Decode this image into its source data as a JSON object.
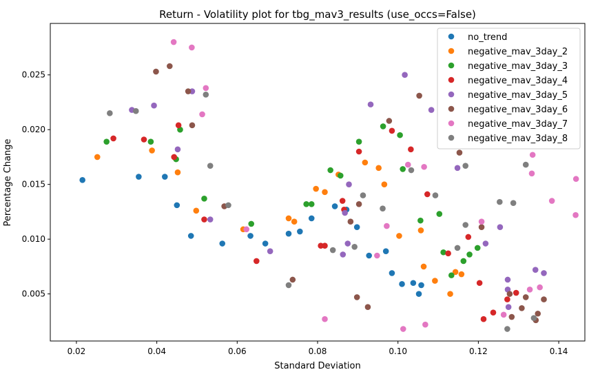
{
  "chart_data": {
    "type": "scatter",
    "title": "Return - Volatility plot for tbg_mav3_results (use_occs=False)",
    "xlabel": "Standard Deviation",
    "ylabel": "Percentage Change",
    "xlim": [
      0.0135,
      0.1465
    ],
    "ylim": [
      0.0007,
      0.0297
    ],
    "xticks": [
      "0.02",
      "0.04",
      "0.06",
      "0.08",
      "0.10",
      "0.12",
      "0.14"
    ],
    "yticks": [
      "0.005",
      "0.010",
      "0.015",
      "0.020",
      "0.025"
    ],
    "xtick_values": [
      0.02,
      0.04,
      0.06,
      0.08,
      0.1,
      0.12,
      0.14
    ],
    "ytick_values": [
      0.005,
      0.01,
      0.015,
      0.02,
      0.025
    ],
    "grid": false,
    "legend_position": "top-right",
    "series": [
      {
        "name": "no_trend",
        "color": "#1f77b4",
        "points": [
          [
            0.0215,
            0.0154
          ],
          [
            0.0355,
            0.0157
          ],
          [
            0.042,
            0.0157
          ],
          [
            0.045,
            0.0131
          ],
          [
            0.0485,
            0.0103
          ],
          [
            0.0563,
            0.0096
          ],
          [
            0.0633,
            0.0103
          ],
          [
            0.067,
            0.0096
          ],
          [
            0.0728,
            0.0105
          ],
          [
            0.0756,
            0.0107
          ],
          [
            0.0785,
            0.0119
          ],
          [
            0.0843,
            0.013
          ],
          [
            0.0872,
            0.0127
          ],
          [
            0.0898,
            0.0111
          ],
          [
            0.0928,
            0.0085
          ],
          [
            0.097,
            0.0089
          ],
          [
            0.0985,
            0.0069
          ],
          [
            0.101,
            0.0059
          ],
          [
            0.1038,
            0.006
          ],
          [
            0.1052,
            0.005
          ],
          [
            0.1058,
            0.0058
          ]
        ]
      },
      {
        "name": "negative_mav_3day_2",
        "color": "#ff7f0e",
        "points": [
          [
            0.0252,
            0.0175
          ],
          [
            0.0388,
            0.0181
          ],
          [
            0.0452,
            0.0161
          ],
          [
            0.0498,
            0.0126
          ],
          [
            0.0615,
            0.0109
          ],
          [
            0.0728,
            0.0119
          ],
          [
            0.0742,
            0.0116
          ],
          [
            0.0796,
            0.0146
          ],
          [
            0.0818,
            0.0143
          ],
          [
            0.0852,
            0.0159
          ],
          [
            0.0918,
            0.017
          ],
          [
            0.0952,
            0.0165
          ],
          [
            0.0966,
            0.015
          ],
          [
            0.1003,
            0.0103
          ],
          [
            0.1057,
            0.0108
          ],
          [
            0.1064,
            0.0075
          ],
          [
            0.1092,
            0.0062
          ],
          [
            0.113,
            0.005
          ],
          [
            0.1143,
            0.007
          ],
          [
            0.1158,
            0.0068
          ]
        ]
      },
      {
        "name": "negative_mav_3day_3",
        "color": "#2ca02c",
        "points": [
          [
            0.0275,
            0.0189
          ],
          [
            0.0385,
            0.0189
          ],
          [
            0.0448,
            0.0173
          ],
          [
            0.0458,
            0.02
          ],
          [
            0.0518,
            0.0137
          ],
          [
            0.0635,
            0.0114
          ],
          [
            0.0772,
            0.0132
          ],
          [
            0.0785,
            0.0132
          ],
          [
            0.0832,
            0.0163
          ],
          [
            0.0857,
            0.0158
          ],
          [
            0.0903,
            0.0189
          ],
          [
            0.0963,
            0.0203
          ],
          [
            0.1005,
            0.0195
          ],
          [
            0.1012,
            0.0164
          ],
          [
            0.1056,
            0.0117
          ],
          [
            0.1103,
            0.0123
          ],
          [
            0.1113,
            0.0088
          ],
          [
            0.1133,
            0.0067
          ],
          [
            0.1163,
            0.008
          ],
          [
            0.1178,
            0.0086
          ],
          [
            0.1198,
            0.0092
          ]
        ]
      },
      {
        "name": "negative_mav_3day_4",
        "color": "#d62728",
        "points": [
          [
            0.0292,
            0.0192
          ],
          [
            0.0368,
            0.0191
          ],
          [
            0.0443,
            0.0175
          ],
          [
            0.0454,
            0.0204
          ],
          [
            0.0518,
            0.0118
          ],
          [
            0.0648,
            0.008
          ],
          [
            0.0808,
            0.0094
          ],
          [
            0.0818,
            0.0094
          ],
          [
            0.0862,
            0.0135
          ],
          [
            0.0866,
            0.0127
          ],
          [
            0.0903,
            0.018
          ],
          [
            0.0985,
            0.0199
          ],
          [
            0.1032,
            0.0182
          ],
          [
            0.1073,
            0.0141
          ],
          [
            0.1125,
            0.0087
          ],
          [
            0.1175,
            0.0102
          ],
          [
            0.1203,
            0.006
          ],
          [
            0.1213,
            0.0027
          ],
          [
            0.1237,
            0.0033
          ],
          [
            0.1272,
            0.0045
          ],
          [
            0.1294,
            0.0051
          ]
        ]
      },
      {
        "name": "negative_mav_3day_5",
        "color": "#9467bd",
        "points": [
          [
            0.0338,
            0.0218
          ],
          [
            0.0393,
            0.0222
          ],
          [
            0.0452,
            0.0182
          ],
          [
            0.0488,
            0.0235
          ],
          [
            0.0533,
            0.0118
          ],
          [
            0.0682,
            0.0089
          ],
          [
            0.0863,
            0.0086
          ],
          [
            0.0868,
            0.0124
          ],
          [
            0.0875,
            0.0096
          ],
          [
            0.0878,
            0.015
          ],
          [
            0.0932,
            0.0223
          ],
          [
            0.1017,
            0.025
          ],
          [
            0.1083,
            0.0218
          ],
          [
            0.1148,
            0.0165
          ],
          [
            0.1218,
            0.0096
          ],
          [
            0.1254,
            0.0111
          ],
          [
            0.1273,
            0.0063
          ],
          [
            0.1273,
            0.0054
          ],
          [
            0.1275,
            0.0038
          ],
          [
            0.1342,
            0.0072
          ],
          [
            0.1363,
            0.0069
          ]
        ]
      },
      {
        "name": "negative_mav_3day_6",
        "color": "#8c564b",
        "points": [
          [
            0.0398,
            0.0253
          ],
          [
            0.0432,
            0.0258
          ],
          [
            0.0478,
            0.0235
          ],
          [
            0.0488,
            0.0204
          ],
          [
            0.0568,
            0.013
          ],
          [
            0.0738,
            0.0063
          ],
          [
            0.0882,
            0.0116
          ],
          [
            0.0898,
            0.0047
          ],
          [
            0.0903,
            0.0132
          ],
          [
            0.0925,
            0.0038
          ],
          [
            0.0978,
            0.0208
          ],
          [
            0.1053,
            0.0231
          ],
          [
            0.1153,
            0.0179
          ],
          [
            0.1208,
            0.0111
          ],
          [
            0.1278,
            0.005
          ],
          [
            0.1283,
            0.0029
          ],
          [
            0.1308,
            0.0037
          ],
          [
            0.1318,
            0.0047
          ],
          [
            0.1343,
            0.0026
          ],
          [
            0.1348,
            0.0032
          ],
          [
            0.1363,
            0.0045
          ]
        ]
      },
      {
        "name": "negative_mav_3day_7",
        "color": "#e377c2",
        "points": [
          [
            0.0442,
            0.028
          ],
          [
            0.0487,
            0.0275
          ],
          [
            0.0513,
            0.0214
          ],
          [
            0.0522,
            0.0238
          ],
          [
            0.0623,
            0.0109
          ],
          [
            0.0818,
            0.0027
          ],
          [
            0.0948,
            0.0085
          ],
          [
            0.0972,
            0.0112
          ],
          [
            0.1013,
            0.0018
          ],
          [
            0.1025,
            0.0168
          ],
          [
            0.1065,
            0.0166
          ],
          [
            0.1068,
            0.0022
          ],
          [
            0.1208,
            0.0116
          ],
          [
            0.1263,
            0.0031
          ],
          [
            0.1328,
            0.0054
          ],
          [
            0.1333,
            0.016
          ],
          [
            0.1335,
            0.0177
          ],
          [
            0.1353,
            0.0056
          ],
          [
            0.1383,
            0.0135
          ],
          [
            0.1442,
            0.0122
          ],
          [
            0.1443,
            0.0155
          ]
        ]
      },
      {
        "name": "negative_mav_3day_8",
        "color": "#7f7f7f",
        "points": [
          [
            0.0283,
            0.0215
          ],
          [
            0.0348,
            0.0217
          ],
          [
            0.0522,
            0.0232
          ],
          [
            0.0533,
            0.0167
          ],
          [
            0.0578,
            0.0131
          ],
          [
            0.0728,
            0.0058
          ],
          [
            0.0838,
            0.009
          ],
          [
            0.0892,
            0.0093
          ],
          [
            0.0913,
            0.014
          ],
          [
            0.0962,
            0.0128
          ],
          [
            0.1033,
            0.0163
          ],
          [
            0.1093,
            0.014
          ],
          [
            0.1148,
            0.0092
          ],
          [
            0.1168,
            0.0113
          ],
          [
            0.1168,
            0.0167
          ],
          [
            0.1253,
            0.0134
          ],
          [
            0.1272,
            0.0018
          ],
          [
            0.1287,
            0.0133
          ],
          [
            0.1318,
            0.0168
          ],
          [
            0.1338,
            0.0028
          ]
        ]
      }
    ]
  }
}
